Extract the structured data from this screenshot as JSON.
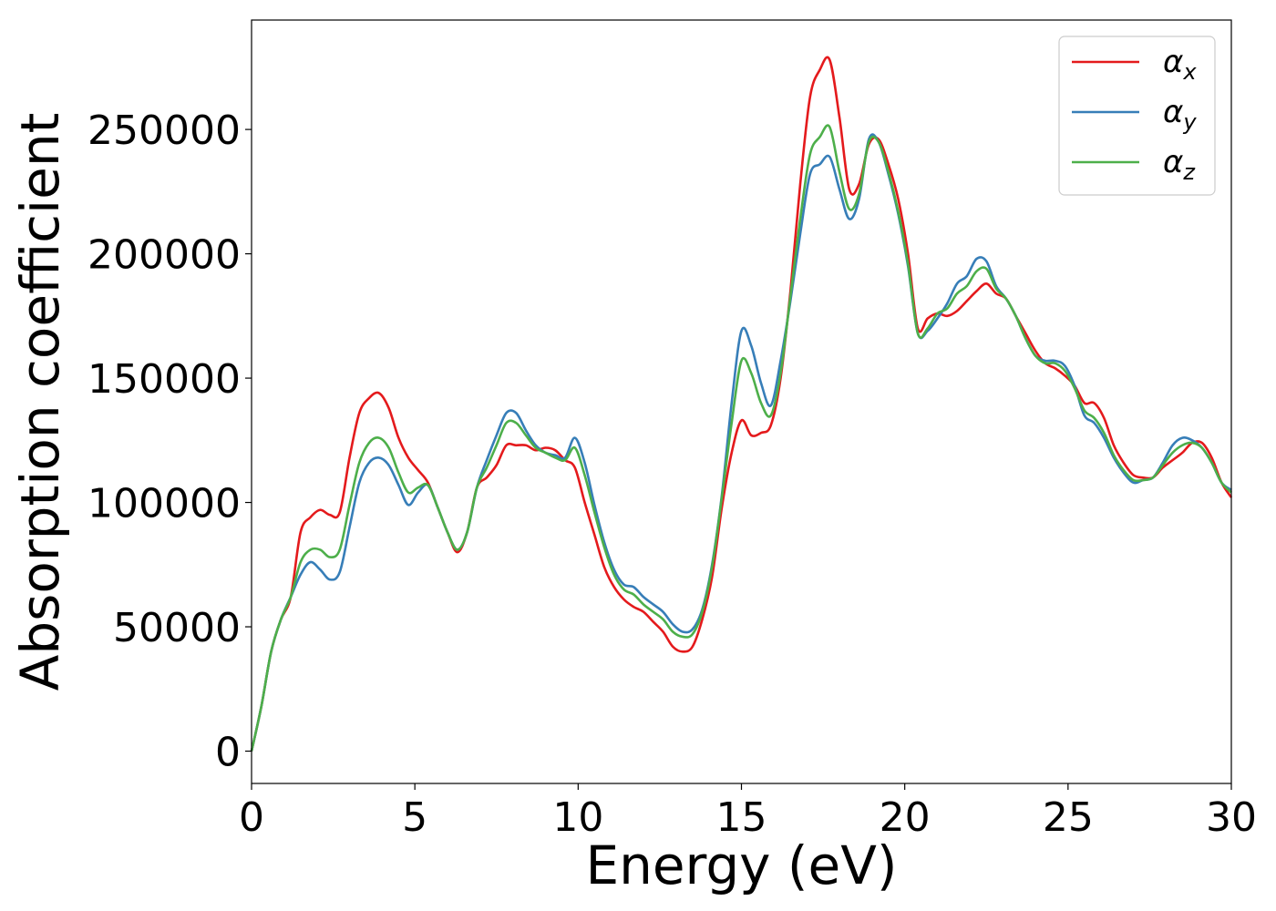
{
  "chart_data": {
    "type": "line",
    "title": "",
    "xlabel": "Energy (eV)",
    "ylabel": "Absorption coefficient",
    "xlim": [
      0,
      30
    ],
    "ylim": [
      -13000,
      294000
    ],
    "xticks": [
      0,
      5,
      10,
      15,
      20,
      25,
      30
    ],
    "yticks": [
      0,
      50000,
      100000,
      150000,
      200000,
      250000
    ],
    "grid": false,
    "legend_position": "top-right",
    "series": [
      {
        "name": "α_x",
        "legend_base": "α",
        "legend_sub": "x",
        "color": "#e41a1c",
        "points": [
          [
            0,
            0
          ],
          [
            0.3,
            18000
          ],
          [
            0.6,
            40000
          ],
          [
            0.9,
            53000
          ],
          [
            1.2,
            62000
          ],
          [
            1.5,
            88000
          ],
          [
            1.8,
            94000
          ],
          [
            2.1,
            97000
          ],
          [
            2.4,
            95000
          ],
          [
            2.7,
            96000
          ],
          [
            3.0,
            118000
          ],
          [
            3.3,
            136000
          ],
          [
            3.6,
            142000
          ],
          [
            3.9,
            144000
          ],
          [
            4.2,
            138000
          ],
          [
            4.5,
            126000
          ],
          [
            4.8,
            118000
          ],
          [
            5.1,
            113000
          ],
          [
            5.4,
            108000
          ],
          [
            5.7,
            98000
          ],
          [
            6.0,
            88000
          ],
          [
            6.3,
            80000
          ],
          [
            6.6,
            88000
          ],
          [
            6.9,
            106000
          ],
          [
            7.2,
            110000
          ],
          [
            7.5,
            115000
          ],
          [
            7.8,
            123000
          ],
          [
            8.1,
            123000
          ],
          [
            8.4,
            123000
          ],
          [
            8.7,
            121000
          ],
          [
            9.0,
            122000
          ],
          [
            9.3,
            121000
          ],
          [
            9.6,
            117000
          ],
          [
            9.9,
            114000
          ],
          [
            10.2,
            100000
          ],
          [
            10.5,
            87000
          ],
          [
            10.8,
            74000
          ],
          [
            11.1,
            66000
          ],
          [
            11.4,
            61000
          ],
          [
            11.7,
            58000
          ],
          [
            12.0,
            56000
          ],
          [
            12.3,
            52000
          ],
          [
            12.6,
            48000
          ],
          [
            12.9,
            42000
          ],
          [
            13.2,
            40000
          ],
          [
            13.5,
            42000
          ],
          [
            13.8,
            53000
          ],
          [
            14.1,
            70000
          ],
          [
            14.4,
            98000
          ],
          [
            14.7,
            120000
          ],
          [
            15.0,
            133000
          ],
          [
            15.3,
            127000
          ],
          [
            15.6,
            128000
          ],
          [
            15.9,
            131000
          ],
          [
            16.2,
            150000
          ],
          [
            16.5,
            185000
          ],
          [
            16.8,
            228000
          ],
          [
            17.1,
            263000
          ],
          [
            17.4,
            274000
          ],
          [
            17.7,
            278000
          ],
          [
            18.0,
            255000
          ],
          [
            18.3,
            226000
          ],
          [
            18.6,
            228000
          ],
          [
            18.9,
            244000
          ],
          [
            19.2,
            246000
          ],
          [
            19.5,
            236000
          ],
          [
            19.8,
            222000
          ],
          [
            20.1,
            200000
          ],
          [
            20.4,
            170000
          ],
          [
            20.7,
            174000
          ],
          [
            21.0,
            176000
          ],
          [
            21.3,
            175000
          ],
          [
            21.6,
            177000
          ],
          [
            21.9,
            181000
          ],
          [
            22.2,
            185000
          ],
          [
            22.5,
            188000
          ],
          [
            22.8,
            184000
          ],
          [
            23.1,
            182000
          ],
          [
            23.4,
            175000
          ],
          [
            23.7,
            168000
          ],
          [
            24.0,
            161000
          ],
          [
            24.3,
            156000
          ],
          [
            24.6,
            154000
          ],
          [
            24.9,
            151000
          ],
          [
            25.2,
            147000
          ],
          [
            25.5,
            140000
          ],
          [
            25.8,
            140000
          ],
          [
            26.1,
            134000
          ],
          [
            26.4,
            123000
          ],
          [
            26.7,
            116000
          ],
          [
            27.0,
            111000
          ],
          [
            27.3,
            110000
          ],
          [
            27.6,
            110000
          ],
          [
            27.9,
            114000
          ],
          [
            28.2,
            117000
          ],
          [
            28.5,
            120000
          ],
          [
            28.8,
            124000
          ],
          [
            29.1,
            124000
          ],
          [
            29.4,
            118000
          ],
          [
            29.7,
            108000
          ],
          [
            30.0,
            102000
          ]
        ]
      },
      {
        "name": "α_y",
        "legend_base": "α",
        "legend_sub": "y",
        "color": "#377eb8",
        "points": [
          [
            0,
            0
          ],
          [
            0.3,
            18000
          ],
          [
            0.6,
            40000
          ],
          [
            0.9,
            53000
          ],
          [
            1.2,
            62000
          ],
          [
            1.5,
            71000
          ],
          [
            1.8,
            76000
          ],
          [
            2.1,
            73000
          ],
          [
            2.4,
            69000
          ],
          [
            2.7,
            72000
          ],
          [
            3.0,
            90000
          ],
          [
            3.3,
            108000
          ],
          [
            3.6,
            116000
          ],
          [
            3.9,
            118000
          ],
          [
            4.2,
            115000
          ],
          [
            4.5,
            107000
          ],
          [
            4.8,
            99000
          ],
          [
            5.1,
            104000
          ],
          [
            5.4,
            107000
          ],
          [
            5.7,
            98000
          ],
          [
            6.0,
            88000
          ],
          [
            6.3,
            81000
          ],
          [
            6.6,
            88000
          ],
          [
            6.9,
            106000
          ],
          [
            7.2,
            117000
          ],
          [
            7.5,
            127000
          ],
          [
            7.8,
            136000
          ],
          [
            8.1,
            136000
          ],
          [
            8.4,
            129000
          ],
          [
            8.7,
            123000
          ],
          [
            9.0,
            120000
          ],
          [
            9.3,
            119000
          ],
          [
            9.6,
            118000
          ],
          [
            9.9,
            126000
          ],
          [
            10.2,
            116000
          ],
          [
            10.5,
            99000
          ],
          [
            10.8,
            84000
          ],
          [
            11.1,
            73000
          ],
          [
            11.4,
            67000
          ],
          [
            11.7,
            66000
          ],
          [
            12.0,
            62000
          ],
          [
            12.3,
            59000
          ],
          [
            12.6,
            56000
          ],
          [
            12.9,
            51000
          ],
          [
            13.2,
            48000
          ],
          [
            13.5,
            49000
          ],
          [
            13.8,
            57000
          ],
          [
            14.1,
            75000
          ],
          [
            14.4,
            103000
          ],
          [
            14.7,
            140000
          ],
          [
            15.0,
            169000
          ],
          [
            15.3,
            163000
          ],
          [
            15.6,
            148000
          ],
          [
            15.9,
            139000
          ],
          [
            16.2,
            157000
          ],
          [
            16.5,
            181000
          ],
          [
            16.8,
            208000
          ],
          [
            17.1,
            232000
          ],
          [
            17.4,
            236000
          ],
          [
            17.7,
            239000
          ],
          [
            18.0,
            226000
          ],
          [
            18.3,
            214000
          ],
          [
            18.6,
            222000
          ],
          [
            18.9,
            246000
          ],
          [
            19.2,
            245000
          ],
          [
            19.5,
            232000
          ],
          [
            19.8,
            216000
          ],
          [
            20.1,
            195000
          ],
          [
            20.4,
            168000
          ],
          [
            20.7,
            169000
          ],
          [
            21.0,
            174000
          ],
          [
            21.3,
            180000
          ],
          [
            21.6,
            188000
          ],
          [
            21.9,
            191000
          ],
          [
            22.2,
            198000
          ],
          [
            22.5,
            197000
          ],
          [
            22.8,
            187000
          ],
          [
            23.1,
            182000
          ],
          [
            23.4,
            175000
          ],
          [
            23.7,
            166000
          ],
          [
            24.0,
            159000
          ],
          [
            24.3,
            157000
          ],
          [
            24.6,
            157000
          ],
          [
            24.9,
            155000
          ],
          [
            25.2,
            147000
          ],
          [
            25.5,
            135000
          ],
          [
            25.8,
            132000
          ],
          [
            26.1,
            126000
          ],
          [
            26.4,
            118000
          ],
          [
            26.7,
            112000
          ],
          [
            27.0,
            108000
          ],
          [
            27.3,
            109000
          ],
          [
            27.6,
            110000
          ],
          [
            27.9,
            116000
          ],
          [
            28.2,
            123000
          ],
          [
            28.5,
            126000
          ],
          [
            28.8,
            125000
          ],
          [
            29.1,
            122000
          ],
          [
            29.4,
            116000
          ],
          [
            29.7,
            108000
          ],
          [
            30.0,
            105000
          ]
        ]
      },
      {
        "name": "α_z",
        "legend_base": "α",
        "legend_sub": "z",
        "color": "#4daf4a",
        "points": [
          [
            0,
            0
          ],
          [
            0.3,
            18000
          ],
          [
            0.6,
            40000
          ],
          [
            0.9,
            53000
          ],
          [
            1.2,
            62000
          ],
          [
            1.5,
            76000
          ],
          [
            1.8,
            81000
          ],
          [
            2.1,
            81000
          ],
          [
            2.4,
            78000
          ],
          [
            2.7,
            81000
          ],
          [
            3.0,
            99000
          ],
          [
            3.3,
            116000
          ],
          [
            3.6,
            124000
          ],
          [
            3.9,
            126000
          ],
          [
            4.2,
            122000
          ],
          [
            4.5,
            112000
          ],
          [
            4.8,
            104000
          ],
          [
            5.1,
            106000
          ],
          [
            5.4,
            107000
          ],
          [
            5.7,
            98000
          ],
          [
            6.0,
            88000
          ],
          [
            6.3,
            81000
          ],
          [
            6.6,
            88000
          ],
          [
            6.9,
            106000
          ],
          [
            7.2,
            114000
          ],
          [
            7.5,
            123000
          ],
          [
            7.8,
            132000
          ],
          [
            8.1,
            132000
          ],
          [
            8.4,
            127000
          ],
          [
            8.7,
            122000
          ],
          [
            9.0,
            120000
          ],
          [
            9.3,
            118000
          ],
          [
            9.6,
            117000
          ],
          [
            9.9,
            122000
          ],
          [
            10.2,
            111000
          ],
          [
            10.5,
            96000
          ],
          [
            10.8,
            82000
          ],
          [
            11.1,
            71000
          ],
          [
            11.4,
            65000
          ],
          [
            11.7,
            63000
          ],
          [
            12.0,
            59000
          ],
          [
            12.3,
            56000
          ],
          [
            12.6,
            53000
          ],
          [
            12.9,
            48000
          ],
          [
            13.2,
            46000
          ],
          [
            13.5,
            47000
          ],
          [
            13.8,
            56000
          ],
          [
            14.1,
            74000
          ],
          [
            14.4,
            102000
          ],
          [
            14.7,
            132000
          ],
          [
            15.0,
            157000
          ],
          [
            15.3,
            152000
          ],
          [
            15.6,
            140000
          ],
          [
            15.9,
            135000
          ],
          [
            16.2,
            152000
          ],
          [
            16.5,
            183000
          ],
          [
            16.8,
            214000
          ],
          [
            17.1,
            240000
          ],
          [
            17.4,
            247000
          ],
          [
            17.7,
            251000
          ],
          [
            18.0,
            233000
          ],
          [
            18.3,
            218000
          ],
          [
            18.6,
            224000
          ],
          [
            18.9,
            245000
          ],
          [
            19.2,
            245000
          ],
          [
            19.5,
            233000
          ],
          [
            19.8,
            217000
          ],
          [
            20.1,
            196000
          ],
          [
            20.4,
            168000
          ],
          [
            20.7,
            170000
          ],
          [
            21.0,
            176000
          ],
          [
            21.3,
            178000
          ],
          [
            21.6,
            184000
          ],
          [
            21.9,
            187000
          ],
          [
            22.2,
            193000
          ],
          [
            22.5,
            194000
          ],
          [
            22.8,
            186000
          ],
          [
            23.1,
            182000
          ],
          [
            23.4,
            175000
          ],
          [
            23.7,
            166000
          ],
          [
            24.0,
            159000
          ],
          [
            24.3,
            156000
          ],
          [
            24.6,
            156000
          ],
          [
            24.9,
            153000
          ],
          [
            25.2,
            146000
          ],
          [
            25.5,
            137000
          ],
          [
            25.8,
            134000
          ],
          [
            26.1,
            128000
          ],
          [
            26.4,
            119000
          ],
          [
            26.7,
            113000
          ],
          [
            27.0,
            109000
          ],
          [
            27.3,
            109000
          ],
          [
            27.6,
            110000
          ],
          [
            27.9,
            115000
          ],
          [
            28.2,
            120000
          ],
          [
            28.5,
            123000
          ],
          [
            28.8,
            124000
          ],
          [
            29.1,
            122000
          ],
          [
            29.4,
            116000
          ],
          [
            29.7,
            108000
          ],
          [
            30.0,
            104000
          ]
        ]
      }
    ]
  }
}
